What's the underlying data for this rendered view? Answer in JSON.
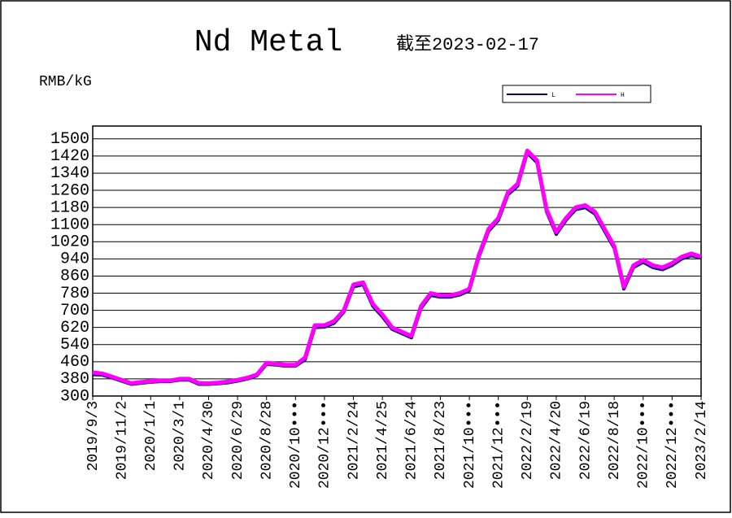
{
  "chart_data": {
    "type": "line",
    "title": "Nd Metal",
    "subtitle": "截至2023-02-17",
    "y_label": "RMB/kG",
    "categories": [
      "2019/9/3",
      null,
      null,
      "2019/11/2",
      null,
      null,
      "2020/1/1",
      null,
      null,
      "2020/3/1",
      null,
      null,
      "2020/4/30",
      null,
      null,
      "2020/6/29",
      null,
      null,
      "2020/8/28",
      null,
      null,
      "2020/10•••",
      null,
      null,
      "2020/12•••",
      null,
      null,
      "2021/2/24",
      null,
      null,
      "2021/4/25",
      null,
      null,
      "2021/6/24",
      null,
      null,
      "2021/8/23",
      null,
      null,
      "2021/10•••",
      null,
      null,
      "2021/12•••",
      null,
      null,
      "2022/2/19",
      null,
      null,
      "2022/4/20",
      null,
      null,
      "2022/6/19",
      null,
      null,
      "2022/8/18",
      null,
      null,
      "2022/10•••",
      null,
      null,
      "2022/12•••",
      null,
      null,
      "2023/2/14"
    ],
    "series": [
      {
        "name": "L",
        "color": "#000080",
        "values": [
          400,
          398,
          385,
          370,
          355,
          360,
          365,
          368,
          368,
          375,
          375,
          355,
          355,
          358,
          362,
          370,
          380,
          395,
          448,
          445,
          440,
          440,
          470,
          620,
          622,
          640,
          692,
          810,
          820,
          720,
          670,
          612,
          592,
          572,
          710,
          770,
          762,
          762,
          772,
          792,
          950,
          1070,
          1120,
          1240,
          1280,
          1435,
          1390,
          1160,
          1055,
          1120,
          1170,
          1180,
          1150,
          1070,
          990,
          800,
          900,
          925,
          900,
          890,
          910,
          940,
          955,
          945
        ]
      },
      {
        "name": "H",
        "color": "#ff00ff",
        "values": [
          410,
          405,
          390,
          375,
          360,
          365,
          370,
          372,
          372,
          380,
          380,
          360,
          360,
          362,
          368,
          375,
          385,
          400,
          455,
          450,
          445,
          445,
          480,
          630,
          630,
          650,
          700,
          820,
          830,
          730,
          680,
          620,
          600,
          580,
          720,
          780,
          770,
          770,
          780,
          800,
          960,
          1080,
          1130,
          1250,
          1290,
          1445,
          1400,
          1170,
          1065,
          1130,
          1180,
          1190,
          1160,
          1080,
          1000,
          810,
          910,
          935,
          910,
          900,
          920,
          950,
          965,
          950
        ]
      }
    ],
    "ylim": [
      300,
      1560
    ],
    "yticks": [
      300,
      380,
      460,
      540,
      620,
      700,
      780,
      860,
      940,
      1020,
      1100,
      1180,
      1260,
      1340,
      1420,
      1500
    ],
    "grid": true
  }
}
